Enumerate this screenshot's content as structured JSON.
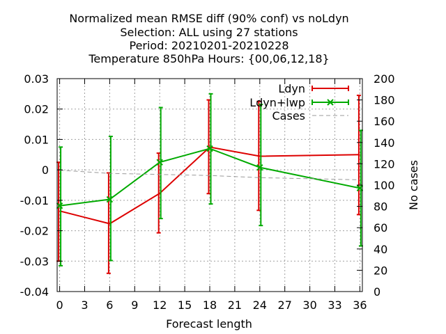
{
  "chart_data": {
    "type": "line",
    "title_lines": [
      "Normalized mean RMSE diff (90% conf) vs noLdyn",
      "Selection: ALL using    27 stations",
      "Period: 20210201-20210228",
      "Temperature 850hPa   Hours: {00,06,12,18}"
    ],
    "xlabel": "Forecast length",
    "ylabel": "",
    "y2label": "No cases",
    "xlim": [
      -0.3,
      36.3
    ],
    "ylim": [
      -0.04,
      0.03
    ],
    "y2lim": [
      0,
      200
    ],
    "xticks": [
      "0",
      "3",
      "6",
      "9",
      "12",
      "15",
      "18",
      "21",
      "24",
      "27",
      "30",
      "33",
      "36"
    ],
    "yticks": [
      "0.03",
      "0.02",
      "0.01",
      "0",
      "-0.01",
      "-0.02",
      "-0.03",
      "-0.04"
    ],
    "y2ticks": [
      "200",
      "180",
      "160",
      "140",
      "120",
      "100",
      "80",
      "60",
      "40",
      "20",
      "0"
    ],
    "grid": true,
    "legend_position": "top-right",
    "series": [
      {
        "name": "Ldyn",
        "color": "#dd0000",
        "x": [
          0,
          6,
          12,
          18,
          24,
          36
        ],
        "y": [
          -0.0135,
          -0.0177,
          -0.0077,
          0.0075,
          0.0045,
          0.005
        ],
        "err_low": [
          -0.03,
          -0.034,
          -0.0207,
          -0.0078,
          -0.0133,
          -0.0147
        ],
        "err_high": [
          0.0025,
          -0.001,
          0.0055,
          0.023,
          0.0225,
          0.0245
        ]
      },
      {
        "name": "Ldyn+lwp",
        "color": "#00aa00",
        "x": [
          0,
          6,
          12,
          18,
          24,
          36
        ],
        "y": [
          -0.0118,
          -0.0097,
          0.0025,
          0.007,
          0.0008,
          -0.006
        ],
        "err_low": [
          -0.0315,
          -0.0298,
          -0.016,
          -0.0112,
          -0.0183,
          -0.025
        ],
        "err_high": [
          0.0075,
          0.011,
          0.0205,
          0.025,
          0.0215,
          0.013
        ]
      },
      {
        "name": "Cases",
        "color": "#999999",
        "axis": "y2",
        "x": [
          0,
          6,
          12,
          18,
          24,
          36
        ],
        "y": [
          114,
          111,
          110,
          109,
          107,
          105
        ]
      }
    ]
  }
}
